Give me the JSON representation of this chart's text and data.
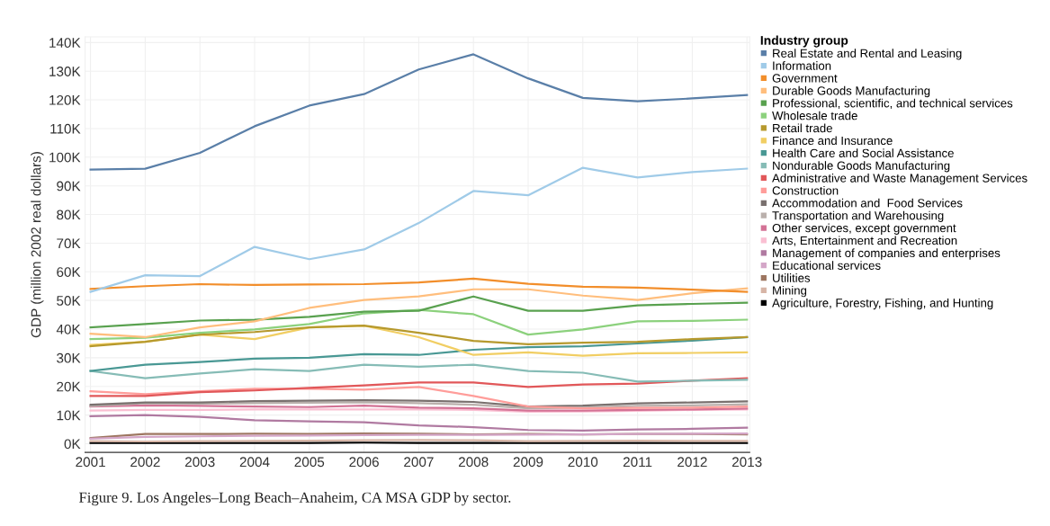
{
  "chart_data": {
    "type": "line",
    "ylabel": "GDP (million 2002 real dollars)",
    "legend_title": "Industry group",
    "categories": [
      "2001",
      "2002",
      "2003",
      "2004",
      "2005",
      "2006",
      "2007",
      "2008",
      "2009",
      "2010",
      "2011",
      "2012",
      "2013"
    ],
    "ylim": [
      -3000,
      142000
    ],
    "yticks": [
      {
        "value": 0,
        "label": "0K"
      },
      {
        "value": 10000,
        "label": "10K"
      },
      {
        "value": 20000,
        "label": "20K"
      },
      {
        "value": 30000,
        "label": "30K"
      },
      {
        "value": 40000,
        "label": "40K"
      },
      {
        "value": 50000,
        "label": "50K"
      },
      {
        "value": 60000,
        "label": "60K"
      },
      {
        "value": 70000,
        "label": "70K"
      },
      {
        "value": 80000,
        "label": "80K"
      },
      {
        "value": 90000,
        "label": "90K"
      },
      {
        "value": 100000,
        "label": "100K"
      },
      {
        "value": 110000,
        "label": "110K"
      },
      {
        "value": 120000,
        "label": "120K"
      },
      {
        "value": 130000,
        "label": "130K"
      },
      {
        "value": 140000,
        "label": "140K"
      }
    ],
    "grid": true,
    "legend": "right",
    "marker": "none",
    "line_style": "solid",
    "annotations": [
      "Figure 9. Los Angeles–Long Beach–Anaheim, CA MSA GDP by sector."
    ],
    "series": [
      {
        "name": "Real Estate and Rental and Leasing",
        "color": "#5a7fa8",
        "values": [
          95700,
          96000,
          101500,
          110800,
          118000,
          122000,
          130600,
          135900,
          127500,
          120700,
          119500,
          120500,
          121700
        ]
      },
      {
        "name": "Information",
        "color": "#a0cbe8",
        "values": [
          53000,
          58800,
          58500,
          68700,
          64400,
          67800,
          77000,
          88200,
          86700,
          96300,
          92900,
          94800,
          96000
        ]
      },
      {
        "name": "Government",
        "color": "#f28e2b",
        "values": [
          54000,
          55000,
          55700,
          55400,
          55600,
          55700,
          56300,
          57600,
          55800,
          54800,
          54500,
          53800,
          53000
        ]
      },
      {
        "name": "Durable Goods Manufacturing",
        "color": "#ffbe7d",
        "values": [
          38400,
          37200,
          40600,
          42700,
          47400,
          50200,
          51400,
          53900,
          53900,
          51700,
          50200,
          52500,
          54200
        ]
      },
      {
        "name": "Professional, scientific, and technical services",
        "color": "#59a14f",
        "values": [
          40600,
          41800,
          43000,
          43300,
          44300,
          46100,
          46400,
          51400,
          46400,
          46400,
          48300,
          48800,
          49200
        ]
      },
      {
        "name": "Wholesale trade",
        "color": "#8cd17d",
        "values": [
          36500,
          37000,
          38700,
          39900,
          41800,
          45500,
          46700,
          45200,
          38100,
          39900,
          42700,
          42900,
          43300
        ]
      },
      {
        "name": "Retail trade",
        "color": "#b6992d",
        "values": [
          34000,
          35600,
          38100,
          39000,
          40600,
          41200,
          38700,
          35900,
          34700,
          35300,
          35600,
          36500,
          37200
        ]
      },
      {
        "name": "Finance and Insurance",
        "color": "#f1ce63",
        "values": [
          34500,
          35600,
          38100,
          36500,
          40600,
          41200,
          37200,
          31000,
          31900,
          30700,
          31600,
          31700,
          31900
        ]
      },
      {
        "name": "Health Care and Social Assistance",
        "color": "#499894",
        "values": [
          25400,
          27600,
          28500,
          29700,
          30000,
          31300,
          31000,
          32800,
          33700,
          34000,
          35000,
          36000,
          37200
        ]
      },
      {
        "name": "Nondurable Goods Manufacturing",
        "color": "#86bcb6",
        "values": [
          25400,
          22900,
          24500,
          26000,
          25400,
          27600,
          26900,
          27600,
          25400,
          24800,
          21700,
          22000,
          22300
        ]
      },
      {
        "name": "Administrative and Waste Management Services",
        "color": "#e15759",
        "values": [
          16700,
          16700,
          18000,
          18600,
          19500,
          20400,
          21400,
          21400,
          19800,
          20700,
          21000,
          22000,
          22900
        ]
      },
      {
        "name": "Construction",
        "color": "#ff9d9a",
        "values": [
          18300,
          17300,
          18300,
          19200,
          19200,
          18900,
          19800,
          16700,
          13000,
          12400,
          12500,
          12600,
          13000
        ]
      },
      {
        "name": "Accommodation and  Food Services",
        "color": "#79706e",
        "values": [
          13600,
          14400,
          14400,
          14900,
          15000,
          15200,
          15000,
          14600,
          13000,
          13300,
          14100,
          14400,
          14800
        ]
      },
      {
        "name": "Transportation and Warehousing",
        "color": "#bab0ac",
        "values": [
          13200,
          14200,
          14000,
          14200,
          14300,
          14500,
          14200,
          13600,
          12400,
          12600,
          13200,
          13400,
          13800
        ]
      },
      {
        "name": "Other services, except government",
        "color": "#d37295",
        "values": [
          13000,
          13400,
          13200,
          13000,
          12800,
          13300,
          12600,
          12400,
          11600,
          11600,
          11800,
          12000,
          12300
        ]
      },
      {
        "name": "Arts, Entertainment and Recreation",
        "color": "#fabfd2",
        "values": [
          11600,
          11800,
          11800,
          12000,
          12000,
          12000,
          12000,
          11800,
          11200,
          11300,
          11500,
          11800,
          12000
        ]
      },
      {
        "name": "Management of companies and enterprises",
        "color": "#b07aa1",
        "values": [
          9600,
          10000,
          9400,
          8200,
          7800,
          7500,
          6400,
          5800,
          4800,
          4600,
          5000,
          5200,
          5600
        ]
      },
      {
        "name": "Educational services",
        "color": "#d4a6c8",
        "values": [
          1800,
          2400,
          2600,
          2800,
          2900,
          3000,
          3100,
          3100,
          3200,
          3300,
          3400,
          3500,
          3600
        ]
      },
      {
        "name": "Utilities",
        "color": "#9d7660",
        "values": [
          2000,
          3400,
          3400,
          3500,
          3400,
          3600,
          3500,
          3300,
          3400,
          3300,
          3400,
          3400,
          3300
        ]
      },
      {
        "name": "Mining",
        "color": "#d7b5a6",
        "values": [
          900,
          800,
          900,
          1000,
          1100,
          1200,
          1300,
          1200,
          900,
          1000,
          1100,
          1000,
          1000
        ]
      },
      {
        "name": "Agriculture, Forestry, Fishing, and Hunting",
        "color": "#000000",
        "values": [
          300,
          300,
          300,
          300,
          300,
          400,
          300,
          300,
          300,
          300,
          300,
          300,
          300
        ]
      }
    ]
  }
}
